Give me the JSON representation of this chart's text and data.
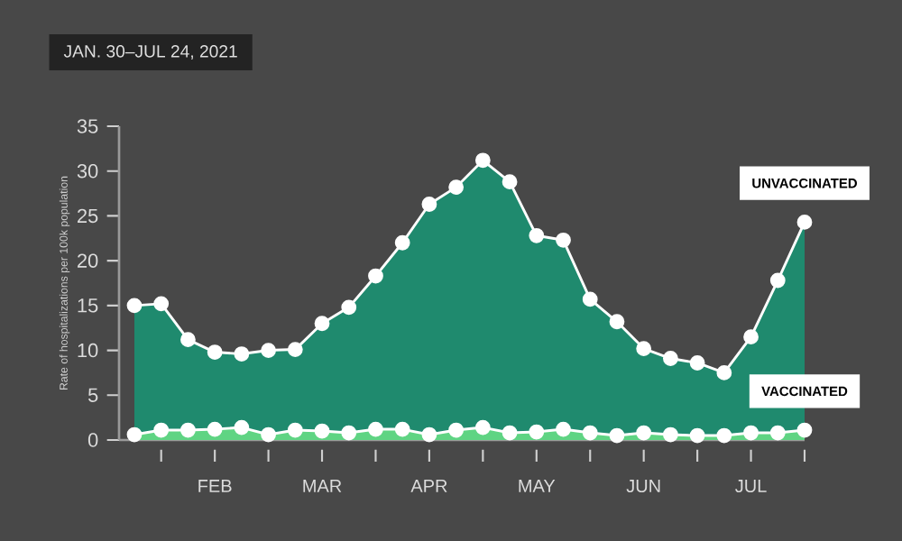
{
  "chart_data": {
    "type": "area",
    "subtitle": "JAN. 30–JUL 24, 2021",
    "ylabel": "Rate of hospitalizations per 100k population",
    "x": [
      "2021-01-30",
      "2021-02-06",
      "2021-02-13",
      "2021-02-20",
      "2021-02-27",
      "2021-03-06",
      "2021-03-13",
      "2021-03-20",
      "2021-03-27",
      "2021-04-03",
      "2021-04-10",
      "2021-04-17",
      "2021-04-24",
      "2021-05-01",
      "2021-05-08",
      "2021-05-15",
      "2021-05-22",
      "2021-05-29",
      "2021-06-05",
      "2021-06-12",
      "2021-06-19",
      "2021-06-26",
      "2021-07-03",
      "2021-07-10",
      "2021-07-17",
      "2021-07-24"
    ],
    "series": [
      {
        "color": "#1f8a6e",
        "values": [
          15,
          15.2,
          11.2,
          9.8,
          9.6,
          10,
          10.1,
          13,
          14.8,
          18.3,
          22,
          26.3,
          28.2,
          31.2,
          28.8,
          22.8,
          22.3,
          15.7,
          13.2,
          10.2,
          9.1,
          8.6,
          7.5,
          11.5,
          17.8,
          24.3
        ]
      },
      {
        "color": "#5fd483",
        "values": [
          0.6,
          1.1,
          1.1,
          1.2,
          1.4,
          0.6,
          1.1,
          1.0,
          0.8,
          1.2,
          1.2,
          0.6,
          1.1,
          1.4,
          0.8,
          0.9,
          1.2,
          0.8,
          0.5,
          0.8,
          0.6,
          0.5,
          0.5,
          0.8,
          0.8,
          1.1
        ]
      }
    ],
    "marker": "circle",
    "xlim": [
      "2021-01-26",
      "2021-07-24"
    ],
    "xticks": [
      {
        "value": "2021-02-06",
        "label": null
      },
      {
        "value": "2021-02-20",
        "label": "FEB"
      },
      {
        "value": "2021-03-06",
        "label": null
      },
      {
        "value": "2021-03-20",
        "label": "MAR"
      },
      {
        "value": "2021-04-03",
        "label": null
      },
      {
        "value": "2021-04-17",
        "label": "APR"
      },
      {
        "value": "2021-05-01",
        "label": null
      },
      {
        "value": "2021-05-15",
        "label": "MAY"
      },
      {
        "value": "2021-05-29",
        "label": null
      },
      {
        "value": "2021-06-12",
        "label": "JUN"
      },
      {
        "value": "2021-06-26",
        "label": null
      },
      {
        "value": "2021-07-10",
        "label": "JUL"
      },
      {
        "value": "2021-07-24",
        "label": null
      }
    ],
    "ylim": [
      0,
      35
    ],
    "yticks": [
      0,
      5,
      10,
      15,
      20,
      25,
      30,
      35
    ],
    "annotations": [
      {
        "text": "UNVACCINATED",
        "x": "2021-07-24",
        "y": 24.3
      },
      {
        "text": "VACCINATED",
        "x": "2021-07-24",
        "y": 1.1
      }
    ]
  }
}
